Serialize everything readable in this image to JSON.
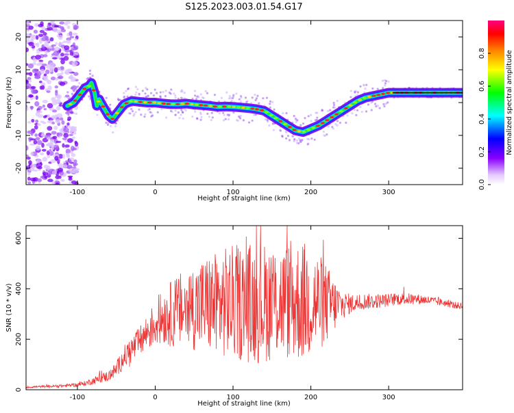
{
  "title": "S125.2023.003.01.54.G17",
  "chart_data": [
    {
      "type": "heatmap",
      "xlabel": "Height of straight line (km)",
      "ylabel": "Frequency (Hz)",
      "xlim": [
        -166,
        395
      ],
      "ylim": [
        -25,
        25
      ],
      "x_ticks": [
        -100,
        0,
        100,
        200,
        300
      ],
      "y_ticks": [
        -20,
        -10,
        0,
        10,
        20
      ],
      "colorbar": {
        "label": "Normalized spectral amplitude",
        "range": [
          0,
          1
        ],
        "ticks": [
          "0.0",
          "0.2",
          "0.4",
          "0.6",
          "0.8"
        ],
        "tick_values": [
          0.0,
          0.2,
          0.4,
          0.6,
          0.8
        ]
      },
      "ridge": {
        "x": [
          -113,
          -105,
          -100,
          -95,
          -90,
          -85,
          -82,
          -78,
          -75,
          -72,
          -70,
          -65,
          -60,
          -55,
          -50,
          -45,
          -40,
          -35,
          -30,
          -20,
          -10,
          0,
          10,
          20,
          30,
          40,
          50,
          60,
          70,
          80,
          90,
          100,
          110,
          120,
          130,
          140,
          150,
          160,
          170,
          180,
          190,
          200,
          210,
          220,
          230,
          240,
          250,
          260,
          270,
          280,
          290,
          300,
          310,
          320,
          340,
          360,
          380,
          395
        ],
        "y": [
          -1,
          0,
          1.5,
          3,
          4.5,
          5,
          6,
          3,
          -1,
          1,
          0,
          -2,
          -4,
          -5,
          -3.5,
          -2,
          -0.5,
          0,
          0.5,
          0.2,
          0,
          0,
          -0.3,
          -0.5,
          -0.5,
          -0.3,
          -0.6,
          -0.8,
          -1,
          -1.3,
          -1.2,
          -1.3,
          -1.5,
          -1.7,
          -2,
          -2.5,
          -4,
          -5.5,
          -7,
          -8.5,
          -9,
          -8,
          -7,
          -5.5,
          -4,
          -2.5,
          -1,
          0.5,
          1.5,
          2,
          2.5,
          3,
          3,
          3,
          3,
          3,
          3,
          3
        ]
      },
      "noise_region_x": [
        -166,
        -100
      ]
    },
    {
      "type": "line",
      "xlabel": "Height of straight line (km)",
      "ylabel": "SNR (10 * v/v)",
      "xlim": [
        -166,
        395
      ],
      "ylim": [
        0,
        650
      ],
      "x_ticks": [
        -100,
        0,
        100,
        200,
        300
      ],
      "y_ticks": [
        0,
        200,
        400,
        600
      ],
      "color": "#ee3333",
      "series": [
        {
          "x": [
            -166,
            -150,
            -120,
            -100,
            -90,
            -80,
            -70,
            -60,
            -50,
            -40,
            -30,
            -20,
            -10,
            0,
            10,
            20,
            30,
            40,
            50,
            60,
            70,
            80,
            90,
            100,
            110,
            120,
            130,
            140,
            150,
            160,
            170,
            180,
            190,
            200,
            210,
            220,
            230,
            240,
            250,
            260,
            270,
            280,
            290,
            300,
            310,
            320,
            330,
            340,
            350,
            360,
            370,
            380,
            395
          ],
          "y": [
            10,
            12,
            15,
            20,
            25,
            35,
            45,
            55,
            80,
            130,
            160,
            190,
            230,
            260,
            290,
            300,
            310,
            320,
            330,
            335,
            340,
            340,
            345,
            345,
            345,
            345,
            345,
            345,
            350,
            350,
            350,
            350,
            350,
            350,
            345,
            340,
            335,
            335,
            340,
            345,
            350,
            350,
            352,
            355,
            360,
            360,
            360,
            358,
            355,
            350,
            345,
            338,
            330
          ],
          "amplitude": [
            4,
            4,
            6,
            8,
            10,
            14,
            18,
            22,
            30,
            45,
            55,
            60,
            75,
            90,
            110,
            130,
            150,
            160,
            175,
            190,
            200,
            210,
            220,
            230,
            235,
            240,
            245,
            240,
            235,
            230,
            235,
            245,
            240,
            230,
            200,
            160,
            110,
            60,
            40,
            35,
            32,
            30,
            28,
            26,
            25,
            24,
            22,
            20,
            18,
            16,
            15,
            14,
            14
          ]
        }
      ]
    }
  ]
}
